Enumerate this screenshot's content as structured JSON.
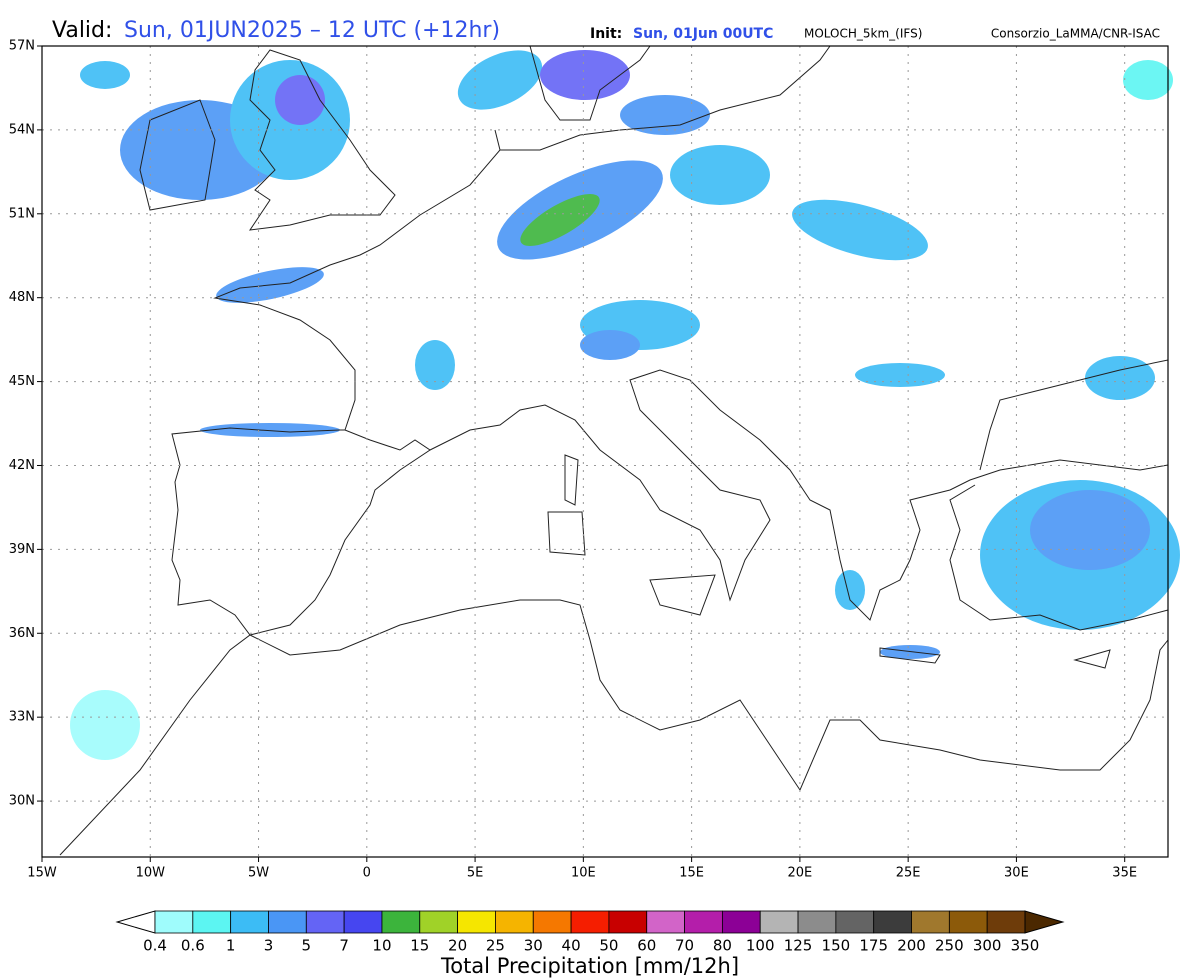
{
  "header": {
    "valid_label": "Valid:",
    "valid_value": "Sun, 01JUN2025 – 12 UTC (+12hr)",
    "init_label": "Init:",
    "init_value": "Sun, 01Jun 00UTC",
    "model": "MOLOCH_5km_(IFS)",
    "source": "Consorzio_LaMMA/CNR-ISAC"
  },
  "map": {
    "lon_range": [
      -15,
      37
    ],
    "lat_range": [
      28,
      57
    ],
    "lat_ticks": [
      {
        "value": 57,
        "label": "57N"
      },
      {
        "value": 54,
        "label": "54N"
      },
      {
        "value": 51,
        "label": "51N"
      },
      {
        "value": 48,
        "label": "48N"
      },
      {
        "value": 45,
        "label": "45N"
      },
      {
        "value": 42,
        "label": "42N"
      },
      {
        "value": 39,
        "label": "39N"
      },
      {
        "value": 36,
        "label": "36N"
      },
      {
        "value": 33,
        "label": "33N"
      },
      {
        "value": 30,
        "label": "30N"
      }
    ],
    "lon_ticks": [
      {
        "value": -15,
        "label": "15W"
      },
      {
        "value": -10,
        "label": "10W"
      },
      {
        "value": -5,
        "label": "5W"
      },
      {
        "value": 0,
        "label": "0"
      },
      {
        "value": 5,
        "label": "5E"
      },
      {
        "value": 10,
        "label": "10E"
      },
      {
        "value": 15,
        "label": "15E"
      },
      {
        "value": 20,
        "label": "20E"
      },
      {
        "value": 25,
        "label": "25E"
      },
      {
        "value": 30,
        "label": "30E"
      },
      {
        "value": 35,
        "label": "35E"
      }
    ]
  },
  "colorbar": {
    "title": "Total Precipitation [mm/12h]",
    "levels": [
      0.4,
      0.6,
      1,
      3,
      5,
      7,
      10,
      15,
      20,
      25,
      30,
      40,
      50,
      60,
      70,
      80,
      100,
      125,
      150,
      175,
      200,
      250,
      300,
      350
    ],
    "colors": [
      "#ffffff",
      "#9ffcfc",
      "#5cf5f2",
      "#3cbcf5",
      "#4a96f5",
      "#6464f5",
      "#4646f0",
      "#3cb43c",
      "#a0d228",
      "#f5e600",
      "#f5b400",
      "#f57800",
      "#f51e00",
      "#c80000",
      "#d264c8",
      "#b41eaa",
      "#8c0096",
      "#b4b4b4",
      "#8c8c8c",
      "#646464",
      "#3c3c3c",
      "#a0782d",
      "#8c5a0a",
      "#6e3c0a",
      "#4b2800"
    ]
  }
}
